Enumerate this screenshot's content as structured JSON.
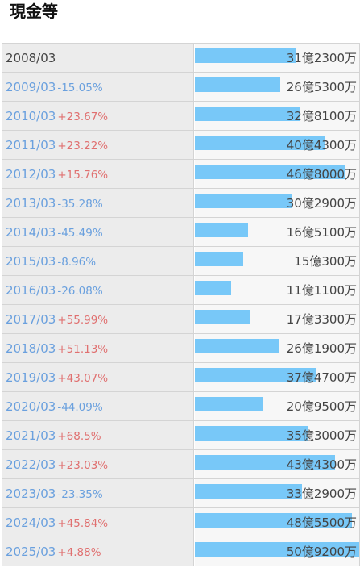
{
  "title": "現金等",
  "chart_data": {
    "type": "bar",
    "title": "現金等",
    "unit_label": "円",
    "categories": [
      "2008/03",
      "2009/03",
      "2010/03",
      "2011/03",
      "2012/03",
      "2013/03",
      "2014/03",
      "2015/03",
      "2016/03",
      "2017/03",
      "2018/03",
      "2019/03",
      "2020/03",
      "2021/03",
      "2022/03",
      "2023/03",
      "2024/03",
      "2025/03"
    ],
    "values": [
      3123000000,
      2653000000,
      3281000000,
      4043000000,
      4680000000,
      3029000000,
      1651000000,
      1503000000,
      1111000000,
      1733000000,
      2619000000,
      3747000000,
      2095000000,
      3530000000,
      4343000000,
      3329000000,
      4855000000,
      5092000000
    ],
    "value_labels": [
      "31億2300万",
      "26億5300万",
      "32億8100万",
      "40億4300万",
      "46億8000万",
      "30億2900万",
      "16億5100万",
      "15億300万",
      "11億1100万",
      "17億3300万",
      "26億1900万",
      "37億4700万",
      "20億9500万",
      "35億3000万",
      "43億4300万",
      "33億2900万",
      "48億5500万",
      "50億9200万"
    ],
    "changes": [
      "",
      "-15.05%",
      "+23.67%",
      "+23.22%",
      "+15.76%",
      "-35.28%",
      "-45.49%",
      "-8.96%",
      "-26.08%",
      "+55.99%",
      "+51.13%",
      "+43.07%",
      "-44.09%",
      "+68.5%",
      "+23.03%",
      "-23.35%",
      "+45.84%",
      "+4.88%"
    ],
    "ylim": [
      0,
      5092000000
    ],
    "bar_color": "#78c8f8",
    "up_color": "#e07070",
    "down_color": "#6aa0de"
  }
}
